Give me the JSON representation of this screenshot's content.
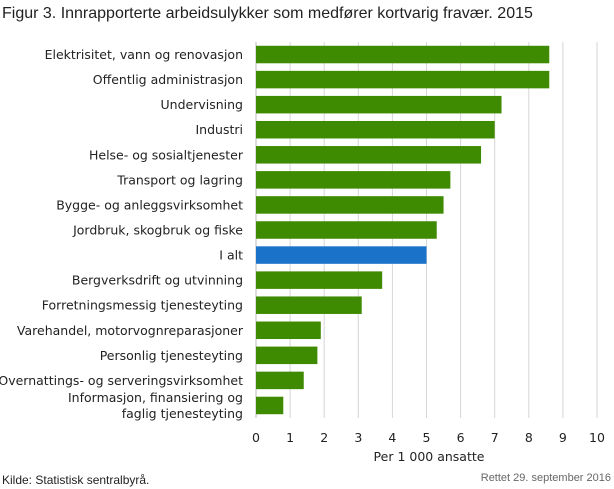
{
  "chart_data": {
    "type": "bar",
    "orientation": "horizontal",
    "title": "Figur 3. Innrapporterte arbeidsulykker som medfører kortvarig fravær. 2015",
    "xlabel": "Per 1 000 ansatte",
    "xlim": [
      0,
      10
    ],
    "xticks": [
      "0",
      "1",
      "2",
      "3",
      "4",
      "5",
      "6",
      "7",
      "8",
      "9",
      "10"
    ],
    "grid": "vertical",
    "categories": [
      "Elektrisitet, vann og renovasjon",
      "Offentlig administrasjon",
      "Undervisning",
      "Industri",
      "Helse- og sosialtjenester",
      "Transport og lagring",
      "Bygge- og anleggsvirksomhet",
      "Jordbruk, skogbruk og fiske",
      "I alt",
      "Bergverksdrift og utvinning",
      "Forretningsmessig tjenesteyting",
      "Varehandel, motorvognreparasjoner",
      "Personlig tjenesteyting",
      "Overnattings- og serveringsvirksomhet",
      [
        "Informasjon, finansiering  og",
        "faglig  tjenesteyting"
      ]
    ],
    "values": [
      8.6,
      8.6,
      7.2,
      7.0,
      6.6,
      5.7,
      5.5,
      5.3,
      5.0,
      3.7,
      3.1,
      1.9,
      1.8,
      1.4,
      0.8
    ],
    "highlight_index": 8,
    "colors": {
      "bar": "#3e8a00",
      "highlight": "#1a73c9",
      "grid": "#d6d6d6",
      "axis": "#bbbbbb"
    }
  },
  "footer": {
    "source": "Kilde: Statistisk sentralbyrå.",
    "updated": "Rettet 29. september 2016"
  }
}
